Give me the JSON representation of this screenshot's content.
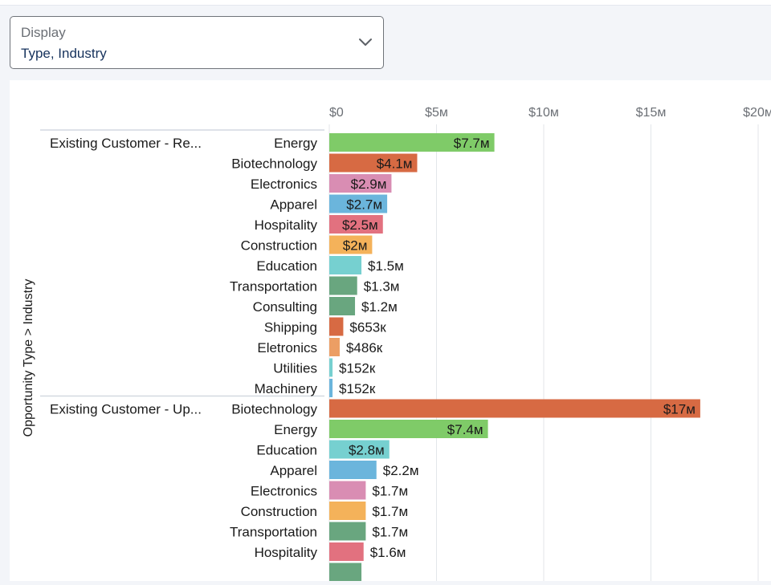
{
  "display": {
    "label": "Display",
    "value": "Type, Industry"
  },
  "chart_data": {
    "type": "bar",
    "orientation": "horizontal",
    "ylabel": "Opportunity Type > Industry",
    "xlabel": "",
    "xlim": [
      0,
      20000000
    ],
    "x_ticks": [
      {
        "value": 0,
        "label": "$0"
      },
      {
        "value": 5000000,
        "label": "$5м"
      },
      {
        "value": 10000000,
        "label": "$10м"
      },
      {
        "value": 15000000,
        "label": "$15м"
      },
      {
        "value": 20000000,
        "label": "$20м"
      }
    ],
    "grid": true,
    "groups": [
      {
        "name": "Existing Customer - Re...",
        "bars": [
          {
            "category": "Energy",
            "value": 7700000,
            "label": "$7.7м",
            "color": "#7fcb68",
            "label_inside": true
          },
          {
            "category": "Biotechnology",
            "value": 4100000,
            "label": "$4.1м",
            "color": "#d76a43",
            "label_inside": true
          },
          {
            "category": "Electronics",
            "value": 2900000,
            "label": "$2.9м",
            "color": "#d98db3",
            "label_inside": true
          },
          {
            "category": "Apparel",
            "value": 2700000,
            "label": "$2.7м",
            "color": "#6bb5dc",
            "label_inside": true
          },
          {
            "category": "Hospitality",
            "value": 2500000,
            "label": "$2.5м",
            "color": "#e2717f",
            "label_inside": true
          },
          {
            "category": "Construction",
            "value": 2000000,
            "label": "$2м",
            "color": "#f4b25a",
            "label_inside": true
          },
          {
            "category": "Education",
            "value": 1500000,
            "label": "$1.5м",
            "color": "#76d0d0",
            "label_inside": false
          },
          {
            "category": "Transportation",
            "value": 1300000,
            "label": "$1.3м",
            "color": "#69a67f",
            "label_inside": false
          },
          {
            "category": "Consulting",
            "value": 1200000,
            "label": "$1.2м",
            "color": "#69a67f",
            "label_inside": false
          },
          {
            "category": "Shipping",
            "value": 653000,
            "label": "$653к",
            "color": "#d76a43",
            "label_inside": false
          },
          {
            "category": "Eletronics",
            "value": 486000,
            "label": "$486к",
            "color": "#ec9e64",
            "label_inside": false
          },
          {
            "category": "Utilities",
            "value": 152000,
            "label": "$152к",
            "color": "#76d0d0",
            "label_inside": false
          },
          {
            "category": "Machinery",
            "value": 152000,
            "label": "$152к",
            "color": "#6bb5dc",
            "label_inside": false
          }
        ]
      },
      {
        "name": "Existing Customer - Up...",
        "bars": [
          {
            "category": "Biotechnology",
            "value": 17300000,
            "label": "$17м",
            "color": "#d76a43",
            "label_inside": true
          },
          {
            "category": "Energy",
            "value": 7400000,
            "label": "$7.4м",
            "color": "#7fcb68",
            "label_inside": true
          },
          {
            "category": "Education",
            "value": 2800000,
            "label": "$2.8м",
            "color": "#76d0d0",
            "label_inside": true
          },
          {
            "category": "Apparel",
            "value": 2200000,
            "label": "$2.2м",
            "color": "#6bb5dc",
            "label_inside": false
          },
          {
            "category": "Electronics",
            "value": 1700000,
            "label": "$1.7м",
            "color": "#d98db3",
            "label_inside": false
          },
          {
            "category": "Construction",
            "value": 1700000,
            "label": "$1.7м",
            "color": "#f4b25a",
            "label_inside": false
          },
          {
            "category": "Transportation",
            "value": 1700000,
            "label": "$1.7м",
            "color": "#69a67f",
            "label_inside": false
          },
          {
            "category": "Hospitality",
            "value": 1600000,
            "label": "$1.6м",
            "color": "#e2717f",
            "label_inside": false
          },
          {
            "category": "",
            "value": 1500000,
            "label": "",
            "color": "#69a67f",
            "label_inside": false
          }
        ]
      }
    ]
  }
}
